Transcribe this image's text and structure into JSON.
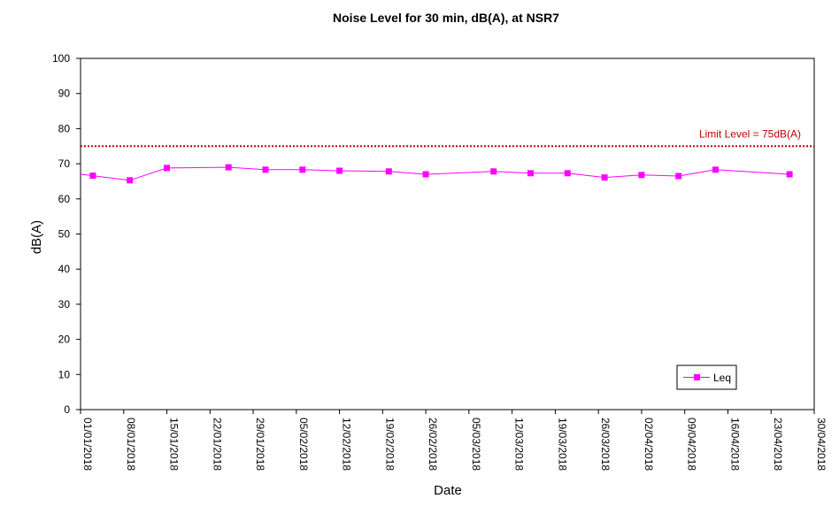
{
  "chart_data": {
    "type": "line",
    "title": "Noise Level for 30 min, dB(A), at NSR7",
    "xlabel": "Date",
    "ylabel": "dB(A)",
    "ylim": [
      0,
      100
    ],
    "yticks": [
      0,
      10,
      20,
      30,
      40,
      50,
      60,
      70,
      80,
      90,
      100
    ],
    "xlim": [
      "2018-01-01",
      "2018-04-30"
    ],
    "xtick_labels": [
      "01/01/2018",
      "08/01/2018",
      "15/01/2018",
      "22/01/2018",
      "29/01/2018",
      "05/02/2018",
      "12/02/2018",
      "19/02/2018",
      "26/02/2018",
      "05/03/2018",
      "12/03/2018",
      "19/03/2018",
      "26/03/2018",
      "02/04/2018",
      "09/04/2018",
      "16/04/2018",
      "23/04/2018",
      "30/04/2018"
    ],
    "grid": false,
    "legend_position": "bottom-right",
    "series": [
      {
        "name": "Leq",
        "color": "#ff00ff",
        "marker": "square",
        "x": [
          "2018-01-03",
          "2018-01-09",
          "2018-01-15",
          "2018-01-25",
          "2018-01-31",
          "2018-02-06",
          "2018-02-12",
          "2018-02-20",
          "2018-02-26",
          "2018-03-09",
          "2018-03-15",
          "2018-03-21",
          "2018-03-27",
          "2018-04-02",
          "2018-04-08",
          "2018-04-14",
          "2018-04-26"
        ],
        "y": [
          66.6,
          65.3,
          68.8,
          69.0,
          68.3,
          68.3,
          68.0,
          67.8,
          67.0,
          67.8,
          67.3,
          67.3,
          66.1,
          66.8,
          66.5,
          68.3,
          67.0
        ]
      }
    ],
    "reference_line": {
      "value": 75,
      "label": "Limit Level = 75dB(A)",
      "color": "#c00000",
      "style": "dotted"
    }
  }
}
